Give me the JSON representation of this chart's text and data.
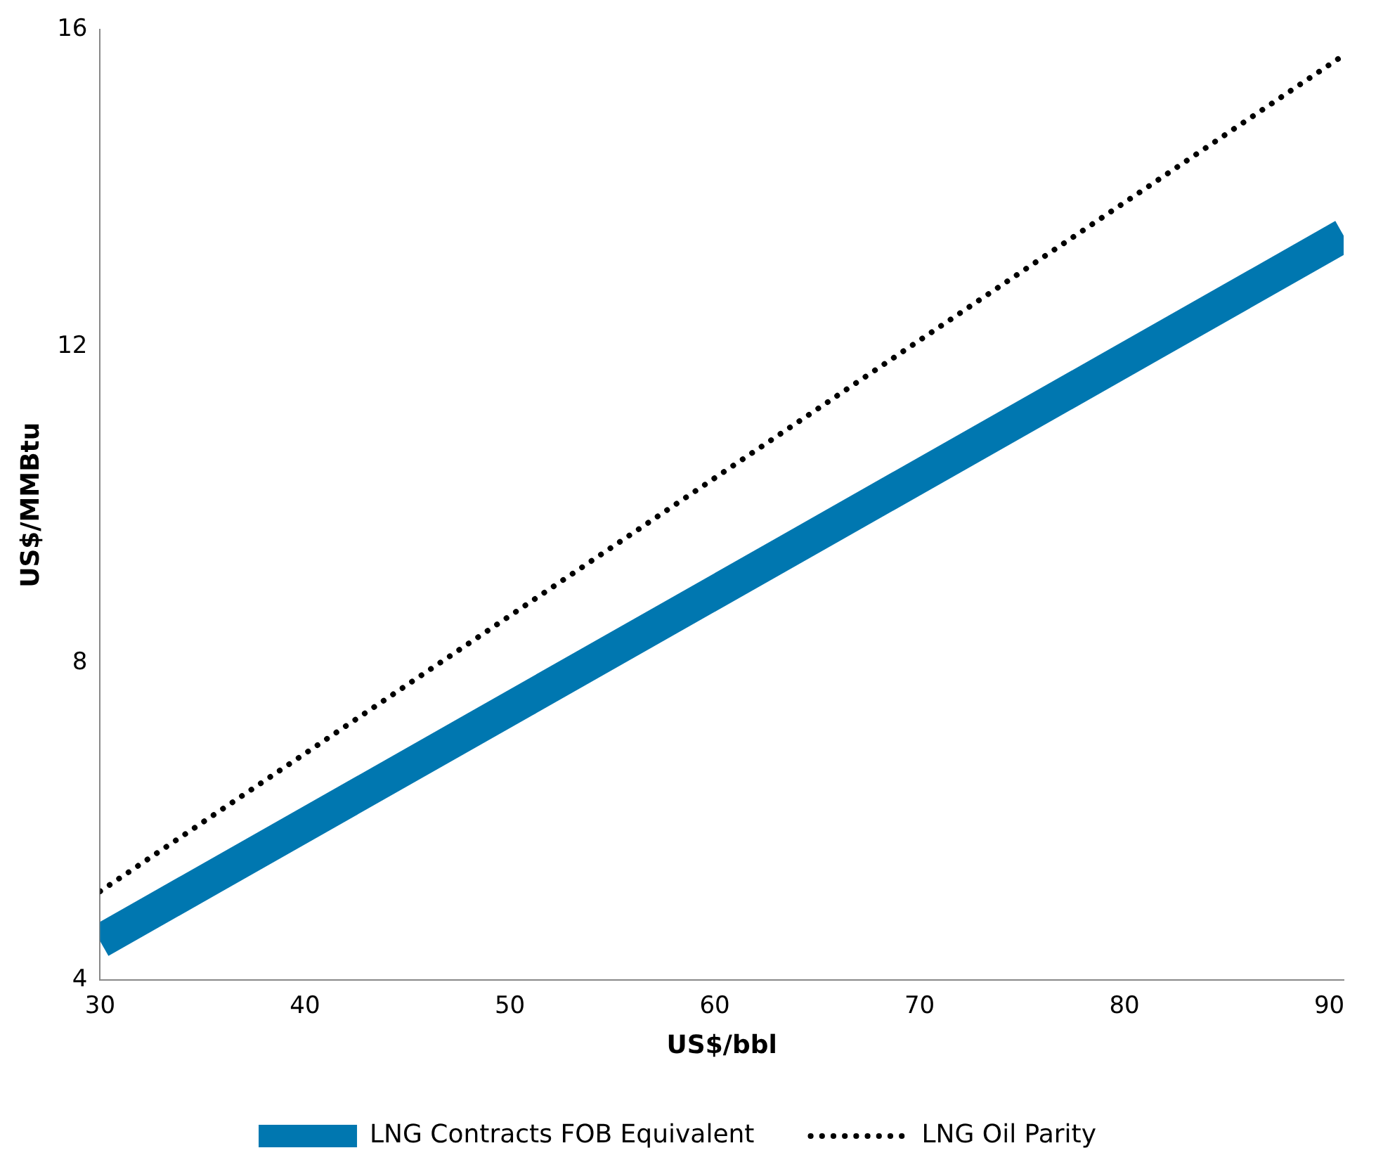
{
  "chart_data": {
    "type": "line",
    "xlabel": "US$/bbl",
    "ylabel": "US$/MMBtu",
    "x": [
      30,
      90.7
    ],
    "xlim": [
      30,
      90.7
    ],
    "xticks": [
      30,
      40,
      50,
      60,
      70,
      80,
      90
    ],
    "ylim": [
      4,
      16
    ],
    "yticks": [
      4,
      8,
      12,
      16
    ],
    "grid": false,
    "legend": "bottom",
    "marker": "none",
    "series": [
      {
        "name": "LNG Contracts FOB Equivalent",
        "color": "#0077b0",
        "values": [
          4.49,
          13.4
        ],
        "line_style": "solid"
      },
      {
        "name": "LNG Oil Parity",
        "color": "#000000",
        "values": [
          5.12,
          15.68
        ],
        "line_style": "dotted"
      }
    ]
  }
}
